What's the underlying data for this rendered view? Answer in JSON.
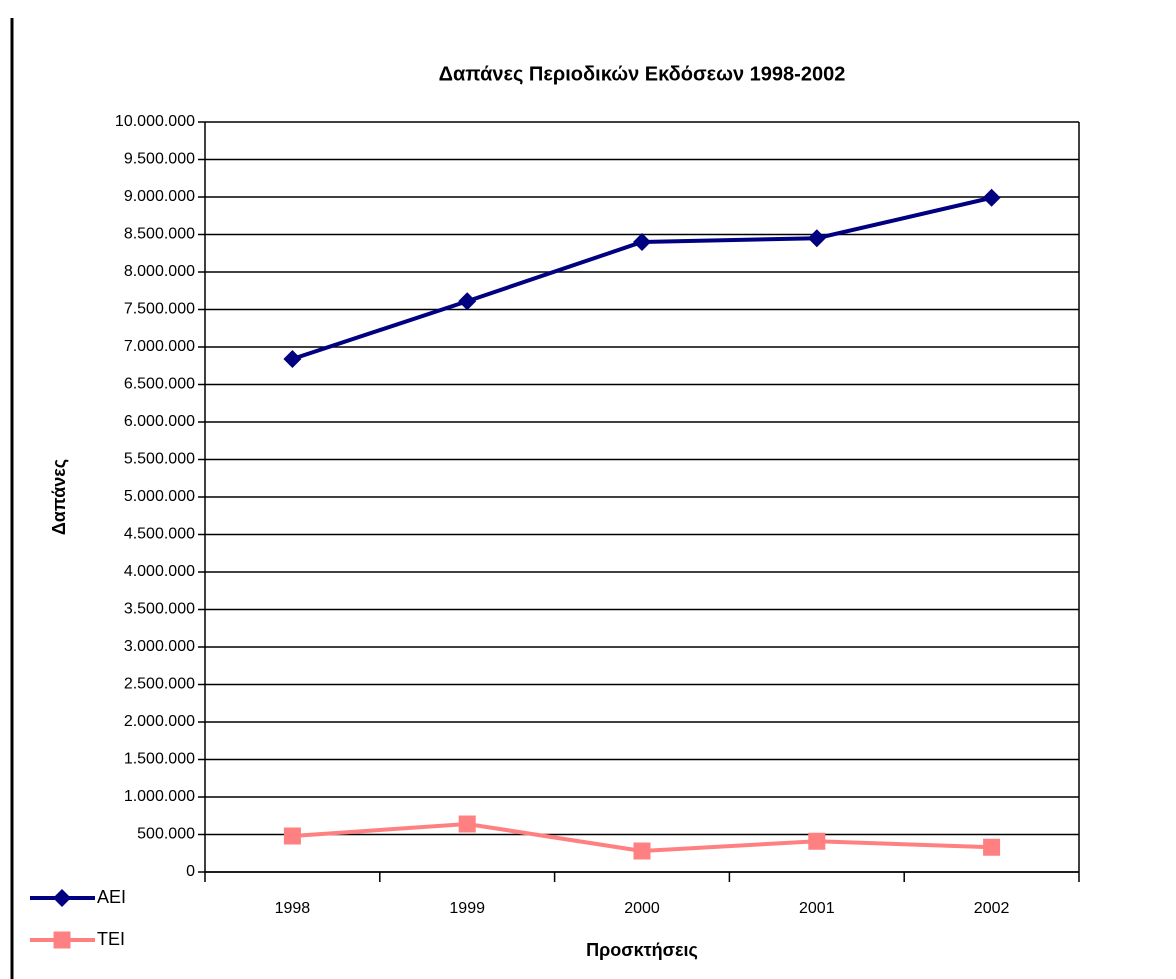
{
  "chart_data": {
    "type": "line",
    "title": "Δαπάνες Περιοδικών Εκδόσεων 1998-2002",
    "x_label": "Προσκτήσεις",
    "y_label": "Δαπάνες",
    "categories": [
      "1998",
      "1999",
      "2000",
      "2001",
      "2002"
    ],
    "series": [
      {
        "name": "ΑΕΙ",
        "color": "#000080",
        "marker": "diamond",
        "values": [
          6840000,
          7610000,
          8400000,
          8450000,
          8990000
        ]
      },
      {
        "name": "ΤΕΙ",
        "color": "#ff8080",
        "marker": "square",
        "values": [
          480000,
          640000,
          280000,
          410000,
          330000
        ]
      }
    ],
    "ylim": [
      0,
      10000000
    ],
    "yticks": [
      0,
      {
        "value": 500000,
        "label": "500.000"
      },
      {
        "value": 1000000,
        "label": "1.000.000"
      },
      {
        "value": 1500000,
        "label": "1.500.000"
      },
      {
        "value": 2000000,
        "label": "2.000.000"
      },
      {
        "value": 2500000,
        "label": "2.500.000"
      },
      {
        "value": 3000000,
        "label": "3.000.000"
      },
      {
        "value": 3500000,
        "label": "3.500.000"
      },
      {
        "value": 4000000,
        "label": "4.000.000"
      },
      {
        "value": 4500000,
        "label": "4.500.000"
      },
      {
        "value": 5000000,
        "label": "5.000.000"
      },
      {
        "value": 5500000,
        "label": "5.500.000"
      },
      {
        "value": 6000000,
        "label": "6.000.000"
      },
      {
        "value": 6500000,
        "label": "6.500.000"
      },
      {
        "value": 7000000,
        "label": "7.000.000"
      },
      {
        "value": 7500000,
        "label": "7.500.000"
      },
      {
        "value": 8000000,
        "label": "8.000.000"
      },
      {
        "value": 8500000,
        "label": "8.500.000"
      },
      {
        "value": 9000000,
        "label": "9.000.000"
      },
      {
        "value": 9500000,
        "label": "9.500.000"
      },
      {
        "value": 10000000,
        "label": "10.000.000"
      }
    ],
    "grid": true,
    "legend": "bottom-left"
  }
}
